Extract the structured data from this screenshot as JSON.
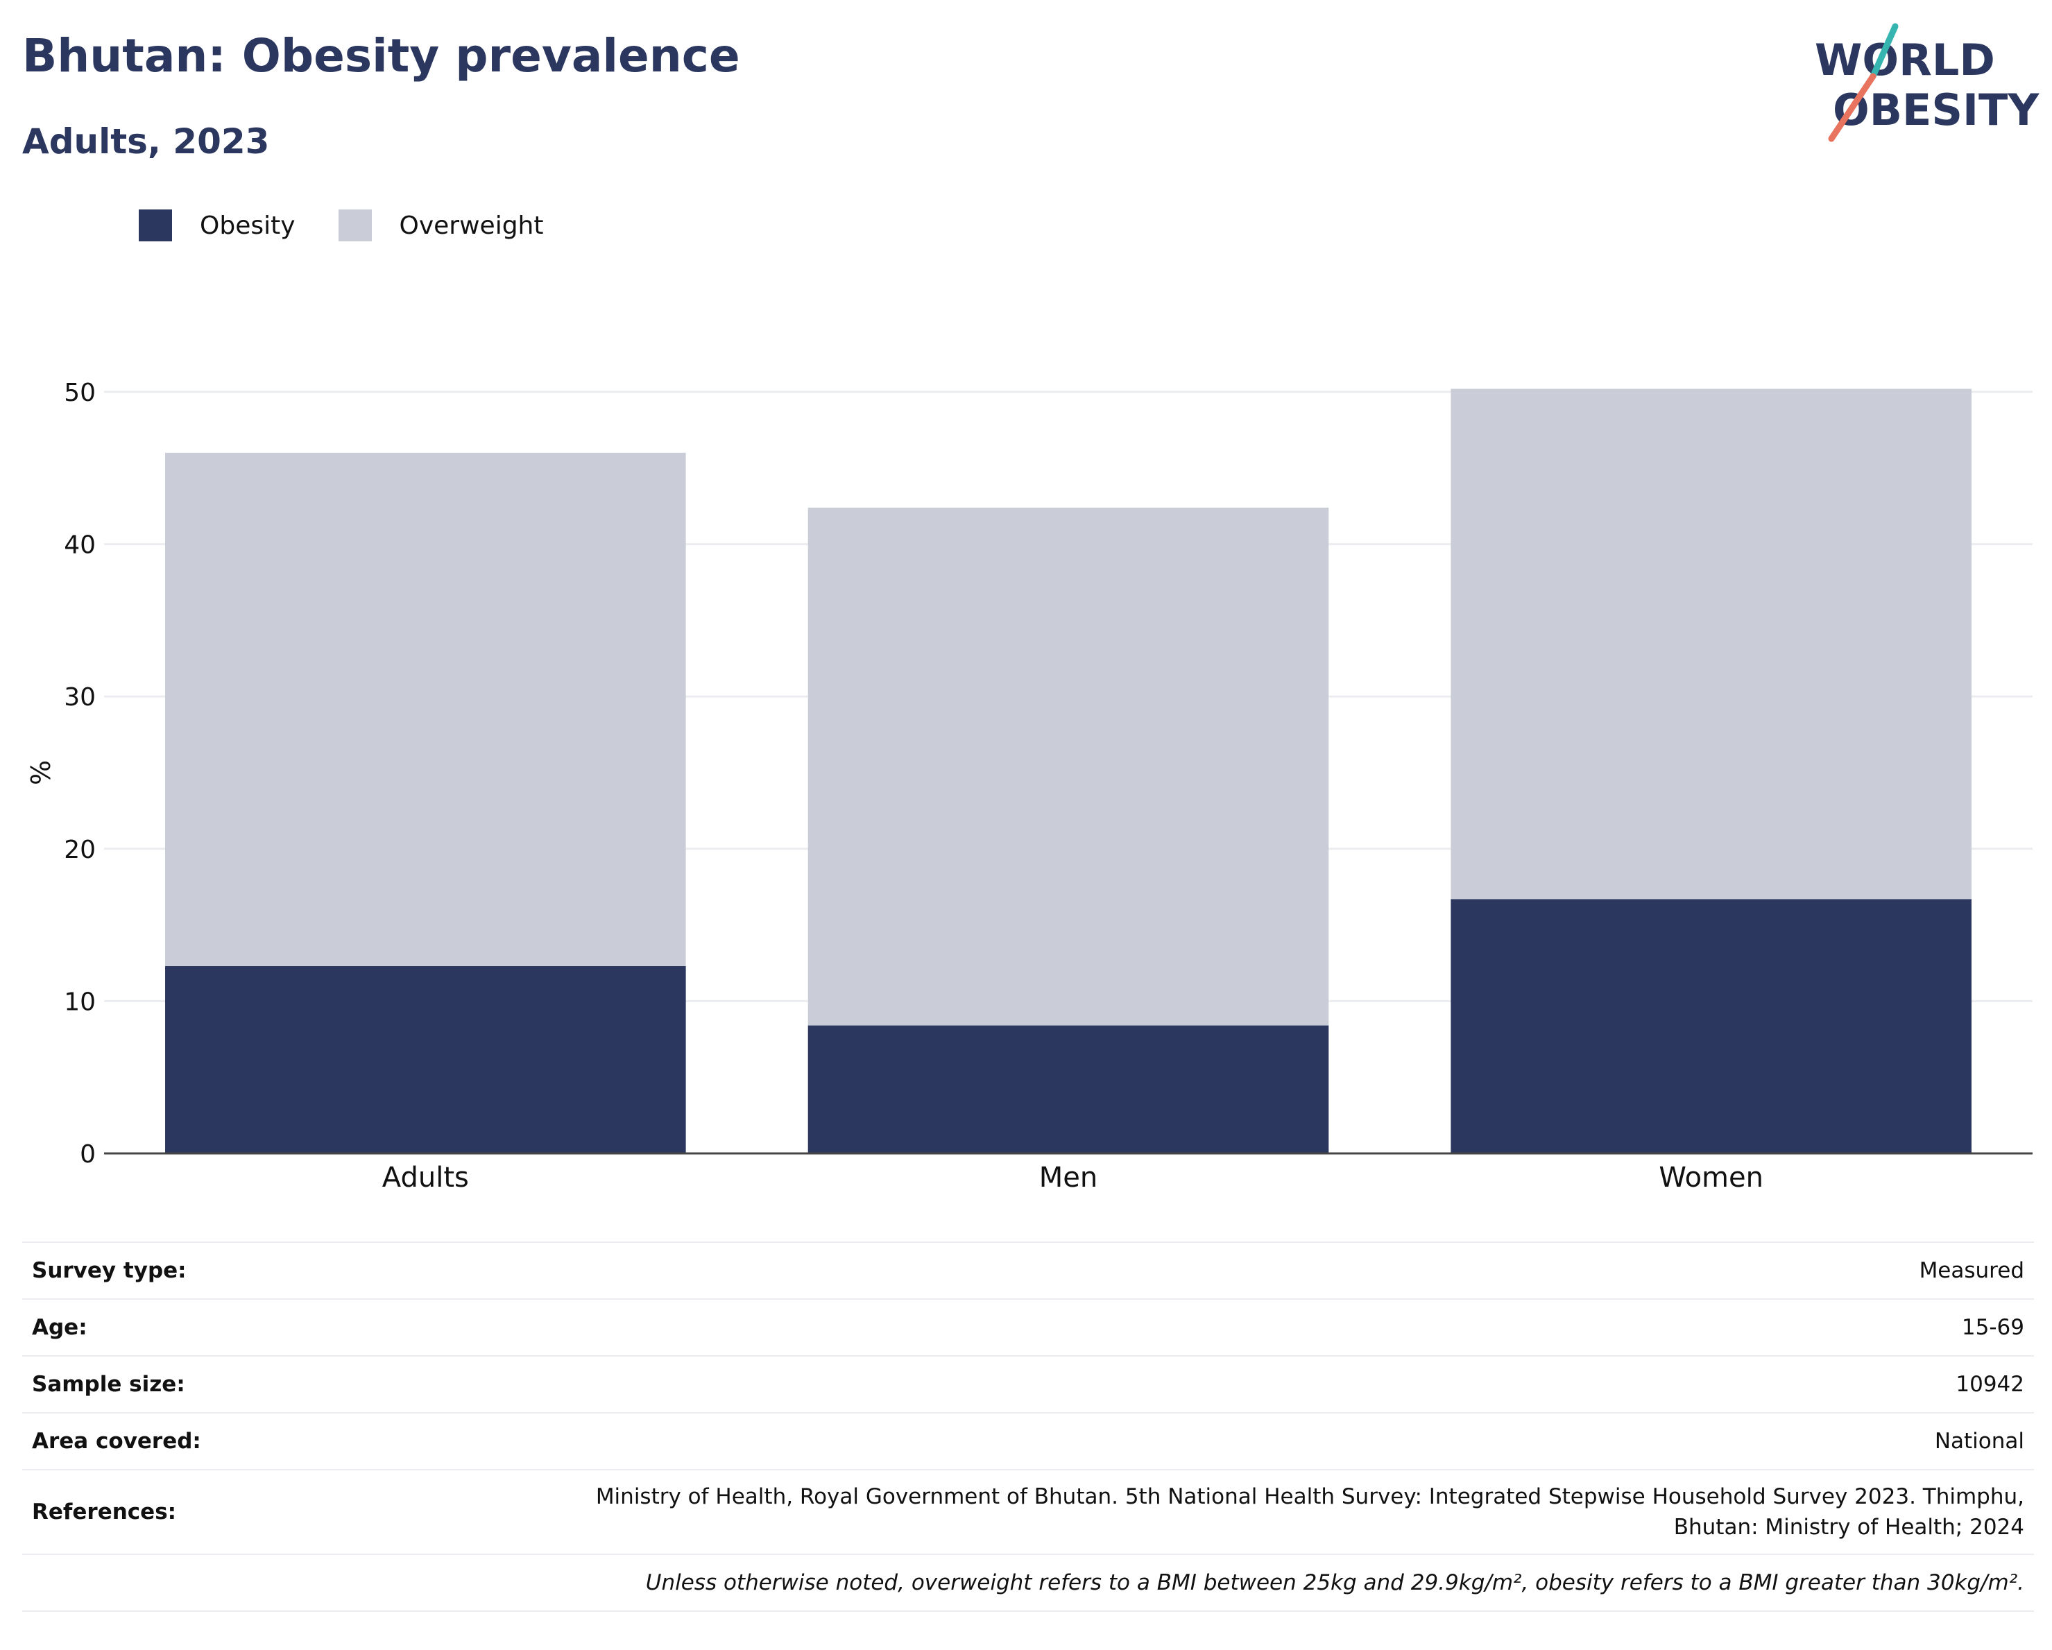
{
  "header": {
    "title": "Bhutan: Obesity prevalence",
    "subtitle": "Adults, 2023"
  },
  "logo": {
    "line1": "WORLD",
    "line2": "OBESITY",
    "accent_teal": "#36b5b0",
    "accent_red": "#e8735f"
  },
  "colors": {
    "obesity": "#2b375f",
    "overweight": "#cacdd8",
    "text": "#2b375f"
  },
  "chart_data": {
    "type": "bar",
    "stacked": true,
    "categories": [
      "Adults",
      "Men",
      "Women"
    ],
    "series": [
      {
        "name": "Obesity",
        "values": [
          12.3,
          8.4,
          16.7
        ]
      },
      {
        "name": "Overweight",
        "values": [
          33.7,
          34.0,
          33.5
        ]
      }
    ],
    "ylabel": "%",
    "ylim": [
      0,
      50
    ],
    "yticks": [
      0,
      10,
      20,
      30,
      40,
      50
    ],
    "grid": true,
    "legend_position": "top-left"
  },
  "info": {
    "rows": [
      {
        "label": "Survey type:",
        "value": "Measured"
      },
      {
        "label": "Age:",
        "value": "15-69"
      },
      {
        "label": "Sample size:",
        "value": "10942"
      },
      {
        "label": "Area covered:",
        "value": "National"
      }
    ],
    "references_label": "References:",
    "references_line1": "Ministry of Health, Royal Government of Bhutan. 5th National Health Survey: Integrated Stepwise Household Survey 2023. Thimphu,",
    "references_line2": "Bhutan: Ministry of Health; 2024",
    "footnote": "Unless otherwise noted, overweight refers to a BMI between 25kg and 29.9kg/m², obesity refers to a BMI greater than 30kg/m²."
  }
}
